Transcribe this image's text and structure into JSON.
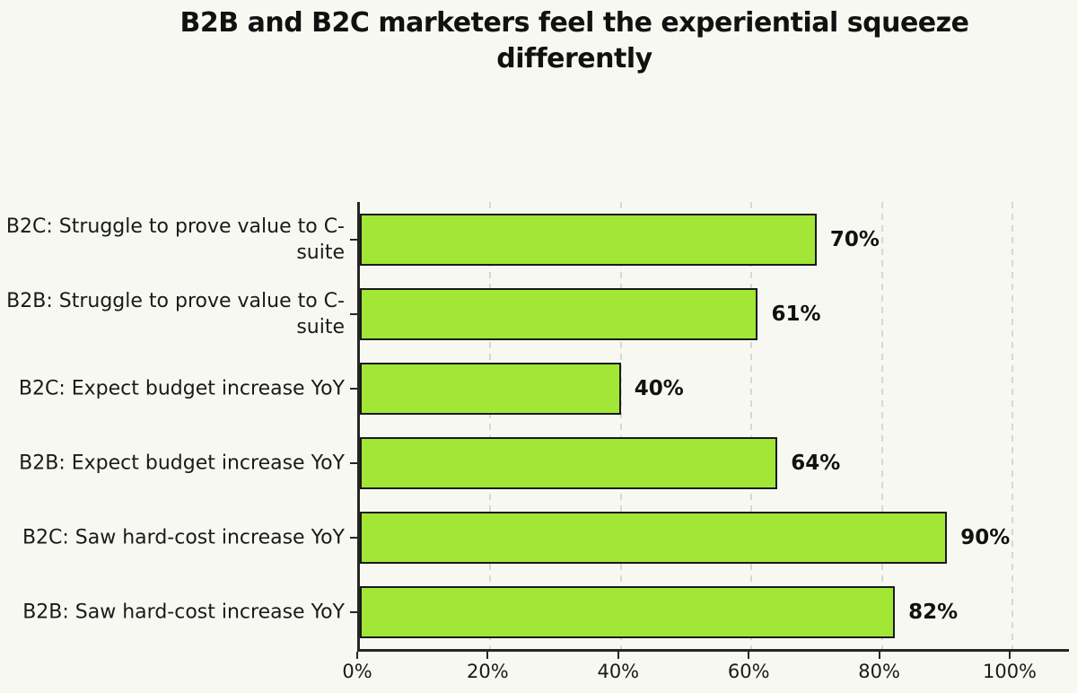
{
  "page": {
    "background_color": "#F8F8F2"
  },
  "chart_data": {
    "type": "bar",
    "orientation": "horizontal",
    "title": "B2B and B2C marketers feel the experiential squeeze differently",
    "categories": [
      "B2C: Struggle to prove value to C-suite",
      "B2B: Struggle to prove value to C-suite",
      "B2C: Expect budget increase YoY",
      "B2B: Expect budget increase YoY",
      "B2C: Saw hard-cost increase YoY",
      "B2B: Saw hard-cost increase YoY"
    ],
    "values": [
      70,
      61,
      40,
      64,
      90,
      82
    ],
    "value_labels": [
      "70%",
      "61%",
      "40%",
      "64%",
      "90%",
      "82%"
    ],
    "xlabel": "",
    "ylabel": "",
    "x_tick_values": [
      0,
      20,
      40,
      60,
      80,
      100
    ],
    "x_tick_labels": [
      "0%",
      "20%",
      "40%",
      "60%",
      "80%",
      "100%"
    ],
    "xlim": [
      0,
      108.7
    ],
    "grid": "vertical-dashed",
    "legend": "none",
    "bar_color": "#A2E636",
    "bar_border_color": "#1A1A1A",
    "axis_color": "#262626",
    "grid_color": "#D8D8D0",
    "background_color": "#F8F8F2",
    "text_color": "#1A1A1A"
  }
}
